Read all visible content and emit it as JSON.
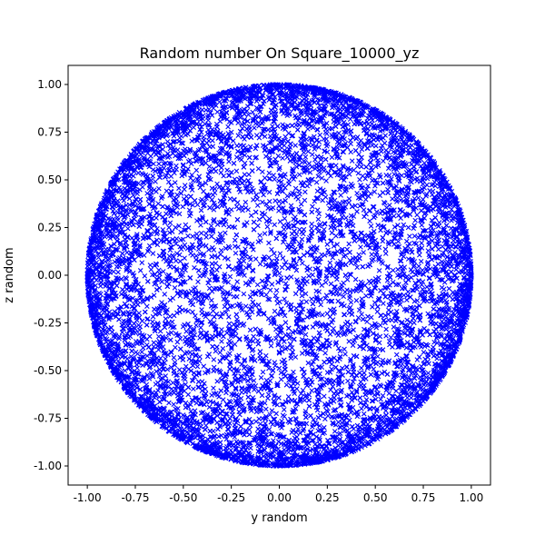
{
  "chart_data": {
    "type": "scatter",
    "title": "Random number On Square_10000_yz",
    "xlabel": "y random",
    "ylabel": "z random",
    "xlim": [
      -1.1,
      1.1
    ],
    "ylim": [
      -1.1,
      1.1
    ],
    "xticks": [
      "-1.00",
      "-0.75",
      "-0.50",
      "-0.25",
      "0.00",
      "0.25",
      "0.50",
      "0.75",
      "1.00"
    ],
    "yticks": [
      "-1.00",
      "-0.75",
      "-0.50",
      "-0.25",
      "0.00",
      "0.25",
      "0.50",
      "0.75",
      "1.00"
    ],
    "grid": false,
    "marker": "x",
    "point_count": 10000,
    "distribution": "points projected onto the yz-plane, filling the unit disk (radius 1.0), denser toward the rim",
    "series": [
      {
        "color": "#0000ff"
      }
    ]
  }
}
